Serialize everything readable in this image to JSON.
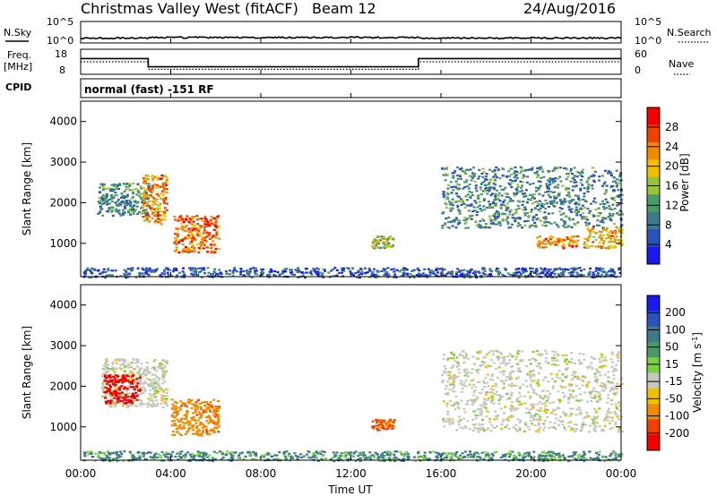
{
  "header": {
    "title": "Christmas Valley West (fitACF)",
    "beam": "Beam 12",
    "date": "24/Aug/2016"
  },
  "panels": {
    "nsky": {
      "left_label": "N.Sky",
      "right_label": "N.Search",
      "left_ticks": [
        "10^5",
        "10^0"
      ],
      "right_ticks": [
        "10^5",
        "10^0"
      ]
    },
    "freq": {
      "left_label_1": "Freq.",
      "left_label_2": "[MHz]",
      "right_label": "Nave",
      "left_ticks": [
        "18",
        "8"
      ],
      "right_ticks": [
        "60",
        "0"
      ]
    },
    "cpid": {
      "label": "CPID",
      "text": "normal (fast) -151 RF"
    }
  },
  "colors": {
    "power_scale": [
      "#1a1af0",
      "#2a52b8",
      "#3c7a8c",
      "#4c9a6a",
      "#9ac23a",
      "#f0c000",
      "#f08a00",
      "#f04000",
      "#f00000"
    ],
    "velocity_scale": [
      "#1a1af0",
      "#2a52b8",
      "#3c7a8c",
      "#4c9a6a",
      "#7ad040",
      "#c8c8c0",
      "#f0c000",
      "#f08a00",
      "#f04000",
      "#f00000"
    ],
    "ground_scatter": "#c8c8c0"
  },
  "chart_data": [
    {
      "type": "line",
      "name": "nsky-nsearch",
      "x": [
        "00:00",
        "24:00"
      ],
      "ylabel_left": "N.Sky",
      "ylabel_right": "N.Search",
      "scale": "log",
      "ylim": [
        1,
        100000
      ]
    },
    {
      "type": "line",
      "name": "frequency-nave",
      "ylabel_left": "Freq. [MHz]",
      "ylabel_right": "Nave",
      "ylim_left": [
        8,
        18
      ],
      "ylim_right": [
        0,
        60
      ],
      "series": [
        {
          "name": "Freq.",
          "x": [
            0,
            3,
            3,
            15,
            15,
            24
          ],
          "values": [
            14.3,
            14.3,
            11.0,
            11.0,
            14.3,
            14.3
          ]
        },
        {
          "name": "Nave",
          "x": [
            0,
            3,
            3,
            15,
            15,
            24
          ],
          "values": [
            30,
            30,
            12,
            12,
            30,
            30
          ]
        }
      ]
    },
    {
      "type": "heatmap",
      "name": "power",
      "ylabel": "Slant Range [km]",
      "ylim": [
        180,
        4500
      ],
      "yticks": [
        1000,
        2000,
        3000,
        4000
      ],
      "xlim": [
        0,
        24
      ],
      "colorbar": {
        "label": "Power [dB]",
        "ticks": [
          4,
          8,
          12,
          16,
          20,
          24,
          28
        ]
      },
      "echo_regions": [
        {
          "t0": 0.1,
          "t1": 24.0,
          "r0": 180,
          "r1": 420,
          "value": 6
        },
        {
          "t0": 0.7,
          "t1": 3.0,
          "r0": 1700,
          "r1": 2500,
          "value": 10
        },
        {
          "t0": 2.7,
          "t1": 3.8,
          "r0": 1500,
          "r1": 2700,
          "value": 22
        },
        {
          "t0": 4.1,
          "t1": 6.1,
          "r0": 800,
          "r1": 1700,
          "value": 24
        },
        {
          "t0": 12.9,
          "t1": 13.9,
          "r0": 900,
          "r1": 1200,
          "value": 14
        },
        {
          "t0": 16.0,
          "t1": 24.0,
          "r0": 1400,
          "r1": 2900,
          "value": 10
        },
        {
          "t0": 20.2,
          "t1": 22.2,
          "r0": 900,
          "r1": 1200,
          "value": 22
        },
        {
          "t0": 22.3,
          "t1": 24.0,
          "r0": 900,
          "r1": 1400,
          "value": 20
        }
      ]
    },
    {
      "type": "heatmap",
      "name": "velocity",
      "ylabel": "Slant Range [km]",
      "xlabel": "Time UT",
      "ylim": [
        180,
        4500
      ],
      "yticks": [
        1000,
        2000,
        3000,
        4000
      ],
      "xlim": [
        0,
        24
      ],
      "xticks": [
        "00:00",
        "04:00",
        "08:00",
        "12:00",
        "16:00",
        "20:00",
        "00:00"
      ],
      "colorbar": {
        "label": "Velocity [m s^-1]",
        "ticks": [
          200,
          100,
          50,
          15,
          -15,
          -50,
          -100,
          -200
        ]
      },
      "echo_regions": [
        {
          "t0": 0.1,
          "t1": 24.0,
          "r0": 180,
          "r1": 420,
          "value": 40
        },
        {
          "t0": 0.9,
          "t1": 3.8,
          "r0": 1500,
          "r1": 2700,
          "value": 0
        },
        {
          "t0": 1.0,
          "t1": 2.6,
          "r0": 1600,
          "r1": 2300,
          "value": -200
        },
        {
          "t0": 4.0,
          "t1": 6.1,
          "r0": 800,
          "r1": 1700,
          "value": -60
        },
        {
          "t0": 12.9,
          "t1": 13.9,
          "r0": 900,
          "r1": 1200,
          "value": -80
        },
        {
          "t0": 16.0,
          "t1": 24.0,
          "r0": 900,
          "r1": 2900,
          "value": 0
        }
      ]
    }
  ],
  "axes": {
    "ylabel": "Slant Range [km]",
    "xlabel": "Time UT",
    "xticks": [
      "00:00",
      "04:00",
      "08:00",
      "12:00",
      "16:00",
      "20:00",
      "00:00"
    ],
    "yticks": [
      "1000",
      "2000",
      "3000",
      "4000"
    ],
    "power_label": "Power [dB]",
    "power_ticks": [
      "28",
      "24",
      "20",
      "16",
      "12",
      "8",
      "4"
    ],
    "velocity_label": "Velocity [m s",
    "velocity_label_sup": "-1",
    "velocity_label_end": "]",
    "velocity_ticks": [
      "200",
      "100",
      "50",
      "15",
      "-15",
      "-50",
      "-100",
      "-200"
    ]
  }
}
